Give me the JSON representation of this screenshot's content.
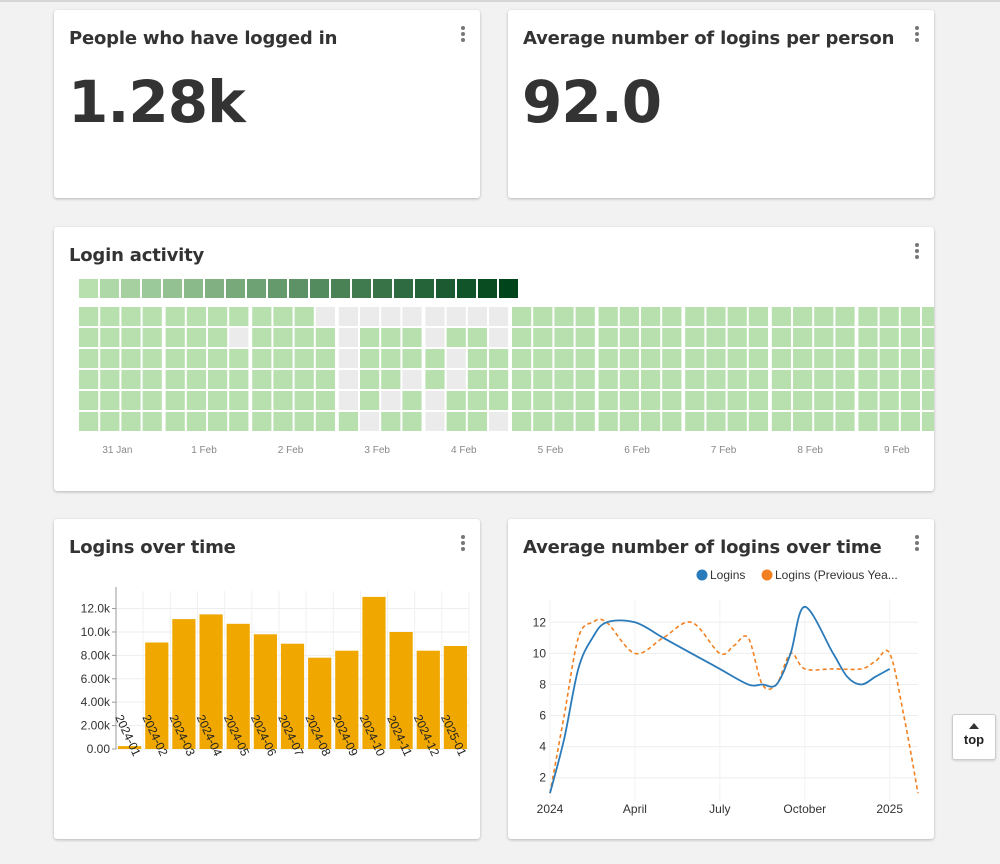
{
  "cards": {
    "people": {
      "title": "People who have logged in",
      "value": "1.28k"
    },
    "average": {
      "title": "Average number of logins per person",
      "value": "92.0"
    },
    "activity": {
      "title": "Login activity"
    },
    "logins_over_time": {
      "title": "Logins over time"
    },
    "avg_over_time": {
      "title": "Average number of logins over time"
    }
  },
  "top_button": {
    "label": "top"
  },
  "colors": {
    "bar": "#f0a800",
    "logins": "#2b7bba",
    "previous": "#f28020"
  },
  "chart_data": [
    {
      "type": "heatmap",
      "title": "Login activity",
      "x_labels": [
        "31 Jan",
        "1 Feb",
        "2 Feb",
        "3 Feb",
        "4 Feb",
        "5 Feb",
        "6 Feb",
        "7 Feb",
        "8 Feb",
        "9 Feb"
      ],
      "legend_levels": 21,
      "rows": 6,
      "columns": 40,
      "empty_cells": [
        [
          0,
          11
        ],
        [
          0,
          12
        ],
        [
          0,
          13
        ],
        [
          0,
          14
        ],
        [
          0,
          15
        ],
        [
          0,
          16
        ],
        [
          0,
          17
        ],
        [
          0,
          18
        ],
        [
          0,
          19
        ],
        [
          1,
          7
        ],
        [
          1,
          12
        ],
        [
          1,
          16
        ],
        [
          1,
          19
        ],
        [
          2,
          12
        ],
        [
          2,
          17
        ],
        [
          3,
          12
        ],
        [
          3,
          15
        ],
        [
          3,
          17
        ],
        [
          4,
          12
        ],
        [
          4,
          14
        ],
        [
          4,
          16
        ],
        [
          5,
          13
        ],
        [
          5,
          16
        ],
        [
          5,
          19
        ]
      ]
    },
    {
      "type": "bar",
      "title": "Logins over time",
      "categories": [
        "2024-01",
        "2024-02",
        "2024-03",
        "2024-04",
        "2024-05",
        "2024-06",
        "2024-07",
        "2024-08",
        "2024-09",
        "2024-10",
        "2024-11",
        "2024-12",
        "2025-01"
      ],
      "values": [
        250,
        9100,
        11100,
        11500,
        10700,
        9800,
        9000,
        7800,
        8400,
        13000,
        10000,
        8400,
        8800
      ],
      "y_ticks": [
        "0.00",
        "2.00k",
        "4.00k",
        "6.00k",
        "8.00k",
        "10.0k",
        "12.0k"
      ],
      "ylim": [
        0,
        13500
      ]
    },
    {
      "type": "line",
      "title": "Average number of logins over time",
      "x_ticks": [
        "2024",
        "April",
        "July",
        "October",
        "2025"
      ],
      "y_ticks": [
        "2",
        "4",
        "6",
        "8",
        "10",
        "12"
      ],
      "ylim": [
        0.5,
        13.5
      ],
      "series": [
        {
          "name": "Logins",
          "x": [
            0,
            0.5,
            1,
            1.5,
            2,
            3,
            4,
            5,
            6,
            7,
            7.5,
            8,
            8.5,
            9,
            10,
            10.5,
            11,
            11.5,
            12
          ],
          "y": [
            1,
            4.5,
            9,
            11,
            12,
            12,
            11,
            10,
            9,
            8,
            8,
            8,
            10,
            13,
            10,
            8.5,
            8,
            8.5,
            9
          ]
        },
        {
          "name": "Logins (Previous Yea...",
          "x": [
            0,
            0.5,
            1,
            1.5,
            2,
            3,
            4,
            5,
            6,
            6.5,
            7,
            7.5,
            8,
            8.5,
            9,
            10,
            11,
            11.5,
            12,
            12.5,
            13
          ],
          "y": [
            1,
            6,
            11,
            12,
            12,
            10,
            11,
            12,
            10,
            10.5,
            11,
            8,
            8,
            10,
            9,
            9,
            9,
            9.5,
            10,
            6,
            1
          ]
        }
      ]
    }
  ]
}
